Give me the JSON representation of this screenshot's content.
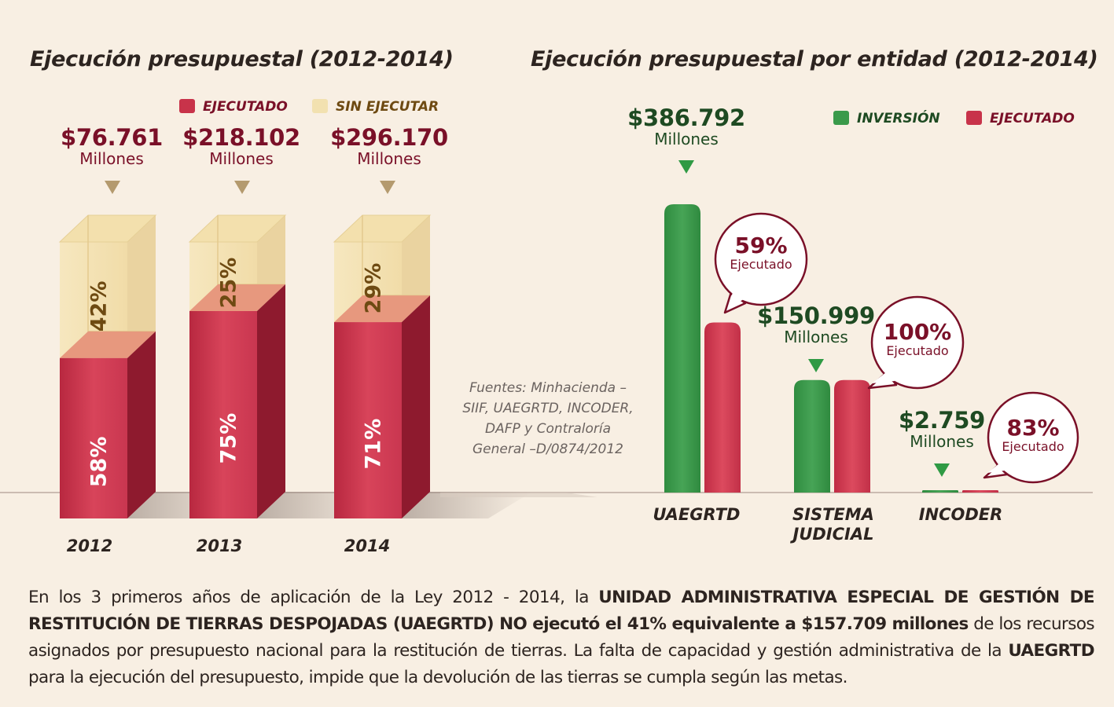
{
  "chart_data": [
    {
      "type": "bar",
      "stacked": true,
      "title": "Ejecución presupuestal (2012-2014)",
      "categories": [
        "2012",
        "2013",
        "2014"
      ],
      "series": [
        {
          "name": "EJECUTADO",
          "values": [
            58,
            75,
            71
          ],
          "labels": [
            "58%",
            "75%",
            "71%"
          ]
        },
        {
          "name": "SIN EJECUTAR",
          "values": [
            42,
            25,
            29
          ],
          "labels": [
            "42%",
            "25%",
            "29%"
          ]
        }
      ],
      "totals": [
        {
          "value": "$76.761",
          "unit": "Millones"
        },
        {
          "value": "$218.102",
          "unit": "Millones"
        },
        {
          "value": "$296.170",
          "unit": "Millones"
        }
      ],
      "legend": "top",
      "colors": {
        "ejecutado": "#c8334a",
        "sin_ejecutar": "#f2e1b0"
      }
    },
    {
      "type": "bar",
      "title": "Ejecución presupuestal por entidad (2012-2014)",
      "categories": [
        "UAEGRTD",
        "SISTEMA JUDICIAL",
        "INCODER"
      ],
      "category_lines": [
        [
          "UAEGRTD"
        ],
        [
          "SISTEMA",
          "JUDICIAL"
        ],
        [
          "INCODER"
        ]
      ],
      "series": [
        {
          "name": "INVERSIÓN",
          "values": [
            386792,
            150999,
            2759
          ]
        },
        {
          "name": "EJECUTADO",
          "values": [
            228205,
            150999,
            2290
          ]
        }
      ],
      "amounts": [
        {
          "value": "$386.792",
          "unit": "Millones"
        },
        {
          "value": "$150.999",
          "unit": "Millones"
        },
        {
          "value": "$2.759",
          "unit": "Millones"
        }
      ],
      "executed": [
        {
          "pct": "59%",
          "label": "Ejecutado"
        },
        {
          "pct": "100%",
          "label": "Ejecutado"
        },
        {
          "pct": "83%",
          "label": "Ejecutado"
        }
      ],
      "legend": "top-right",
      "colors": {
        "inversion": "#3a9a4a",
        "ejecutado": "#c8334a"
      }
    }
  ],
  "sources": [
    "Fuentes: Minhacienda –",
    "SIIF, UAEGRTD, INCODER,",
    "DAFP y Contraloría",
    "General –D/0874/2012"
  ],
  "paragraph": {
    "t1": "En los 3 primeros años de aplicación de la Ley 2012 - 2014, la ",
    "b1": "UNIDAD ADMINISTRATIVA ESPECIAL DE GESTIÓN DE RESTITUCIÓN DE TIERRAS DESPOJADAS (UAEGRTD) NO ejecutó el 41% equivalente a $157.709 millones",
    "t2": " de los recursos asignados por presupuesto nacional para la restitución de tierras. La falta de capacidad y gestión administrativa de la ",
    "b2": "UAEGRTD",
    "t3": " para la ejecución del presupuesto, impide que la devolución de las tierras se cumpla según las metas."
  }
}
